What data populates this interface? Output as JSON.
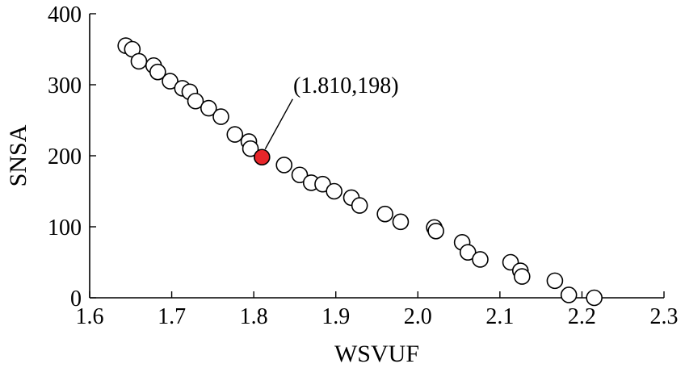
{
  "chart_data": {
    "type": "scatter",
    "title": "",
    "xlabel": "WSVUF",
    "ylabel": "SNSA",
    "xlim": [
      1.6,
      2.3
    ],
    "ylim": [
      0,
      400
    ],
    "xticks": [
      "1.6",
      "1.7",
      "1.8",
      "1.9",
      "2.0",
      "2.1",
      "2.2",
      "2.3"
    ],
    "yticks": [
      "0",
      "100",
      "200",
      "300",
      "400"
    ],
    "grid": false,
    "marker_fill": "#ffffff",
    "marker_edge": "#000000",
    "highlight_color": "#e8262a",
    "points": [
      {
        "x": 1.644,
        "y": 355
      },
      {
        "x": 1.652,
        "y": 350
      },
      {
        "x": 1.66,
        "y": 333
      },
      {
        "x": 1.678,
        "y": 327
      },
      {
        "x": 1.683,
        "y": 318
      },
      {
        "x": 1.698,
        "y": 305
      },
      {
        "x": 1.713,
        "y": 295
      },
      {
        "x": 1.722,
        "y": 290
      },
      {
        "x": 1.729,
        "y": 277
      },
      {
        "x": 1.745,
        "y": 267
      },
      {
        "x": 1.76,
        "y": 255
      },
      {
        "x": 1.777,
        "y": 230
      },
      {
        "x": 1.794,
        "y": 220
      },
      {
        "x": 1.796,
        "y": 210
      },
      {
        "x": 1.837,
        "y": 187
      },
      {
        "x": 1.856,
        "y": 173
      },
      {
        "x": 1.87,
        "y": 162
      },
      {
        "x": 1.884,
        "y": 160
      },
      {
        "x": 1.898,
        "y": 150
      },
      {
        "x": 1.919,
        "y": 141
      },
      {
        "x": 1.929,
        "y": 130
      },
      {
        "x": 1.96,
        "y": 118
      },
      {
        "x": 1.979,
        "y": 107
      },
      {
        "x": 2.02,
        "y": 99
      },
      {
        "x": 2.022,
        "y": 94
      },
      {
        "x": 2.054,
        "y": 78
      },
      {
        "x": 2.061,
        "y": 64
      },
      {
        "x": 2.076,
        "y": 54
      },
      {
        "x": 2.113,
        "y": 50
      },
      {
        "x": 2.125,
        "y": 38
      },
      {
        "x": 2.127,
        "y": 30
      },
      {
        "x": 2.167,
        "y": 24
      },
      {
        "x": 2.184,
        "y": 4
      },
      {
        "x": 2.215,
        "y": 0
      }
    ],
    "highlight": {
      "x": 1.81,
      "y": 198
    },
    "annotations": [
      {
        "text": "(1.810,198)",
        "target_x": 1.81,
        "target_y": 198
      }
    ]
  }
}
